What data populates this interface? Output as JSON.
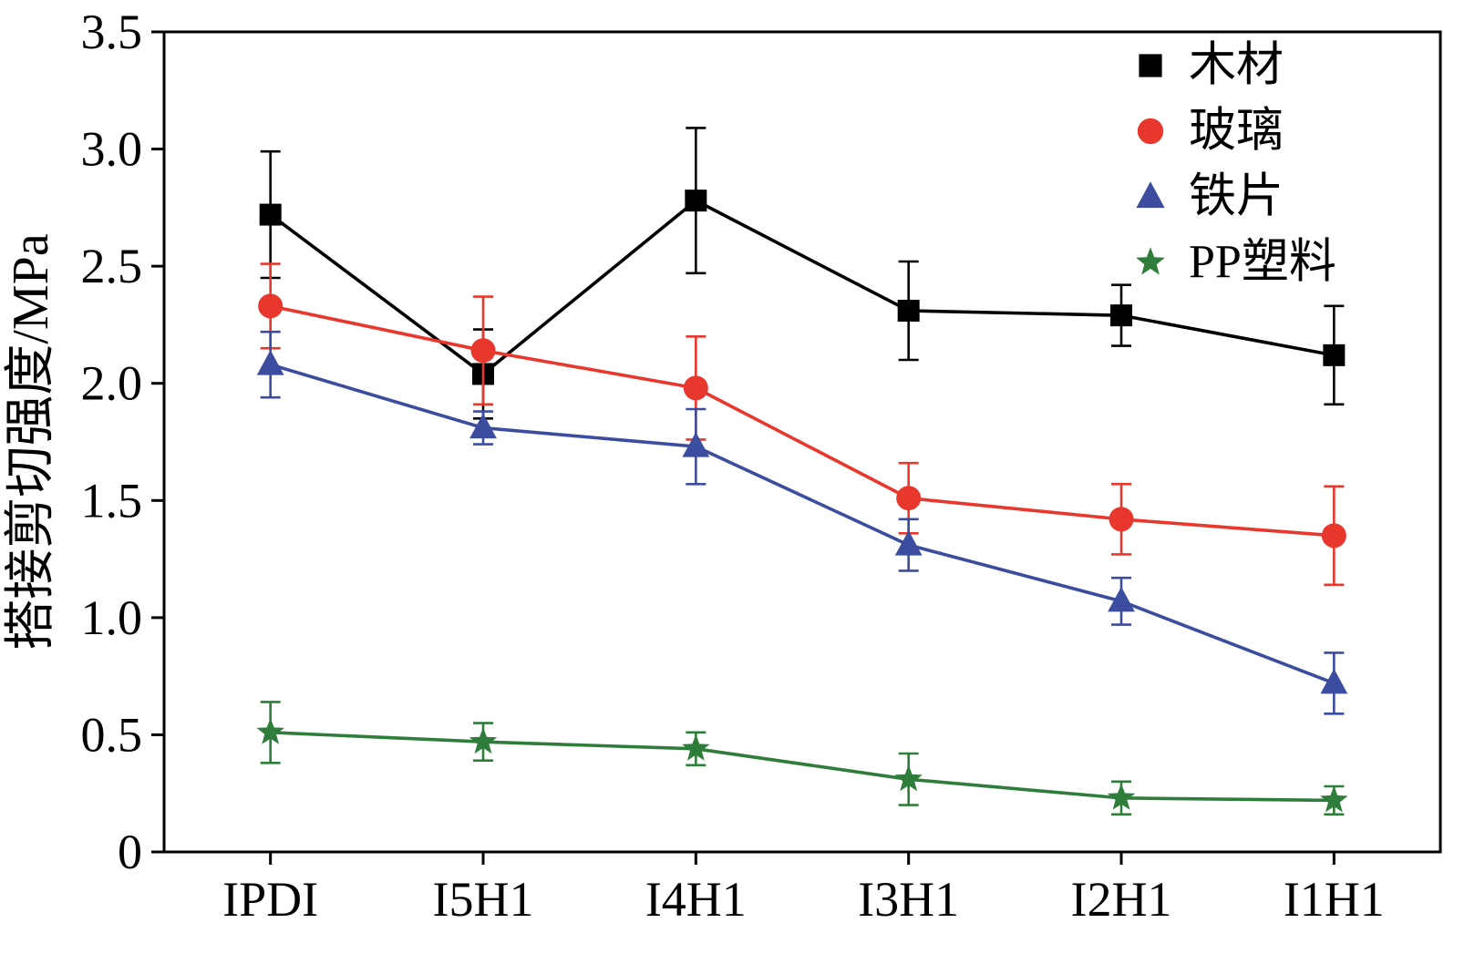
{
  "chart_data": {
    "type": "line",
    "title": "",
    "xlabel": "",
    "ylabel": "搭接剪切强度/MPa",
    "categories": [
      "IPDI",
      "I5H1",
      "I4H1",
      "I3H1",
      "I2H1",
      "I1H1"
    ],
    "ylim": [
      0,
      3.5
    ],
    "yticks": [
      0,
      0.5,
      1.0,
      1.5,
      2.0,
      2.5,
      3.0,
      3.5
    ],
    "ytick_labels": [
      "0",
      "0.5",
      "1.0",
      "1.5",
      "2.0",
      "2.5",
      "3.0",
      "3.5"
    ],
    "grid": false,
    "legend_position": "top-right",
    "series": [
      {
        "name": "木材",
        "marker": "square",
        "color": "#000000",
        "values": [
          2.72,
          2.04,
          2.78,
          2.31,
          2.29,
          2.12
        ],
        "errors": [
          0.27,
          0.19,
          0.31,
          0.21,
          0.13,
          0.21
        ]
      },
      {
        "name": "玻璃",
        "marker": "circle",
        "color": "#e8382d",
        "values": [
          2.33,
          2.14,
          1.98,
          1.51,
          1.42,
          1.35
        ],
        "errors": [
          0.18,
          0.23,
          0.22,
          0.15,
          0.15,
          0.21
        ]
      },
      {
        "name": "铁片",
        "marker": "triangle",
        "color": "#3c4da0",
        "values": [
          2.08,
          1.81,
          1.73,
          1.31,
          1.07,
          0.72
        ],
        "errors": [
          0.14,
          0.07,
          0.16,
          0.11,
          0.1,
          0.13
        ]
      },
      {
        "name": "PP塑料",
        "marker": "star",
        "color": "#2f7d3b",
        "values": [
          0.51,
          0.47,
          0.44,
          0.31,
          0.23,
          0.22
        ],
        "errors": [
          0.13,
          0.08,
          0.07,
          0.11,
          0.07,
          0.06
        ]
      }
    ]
  }
}
